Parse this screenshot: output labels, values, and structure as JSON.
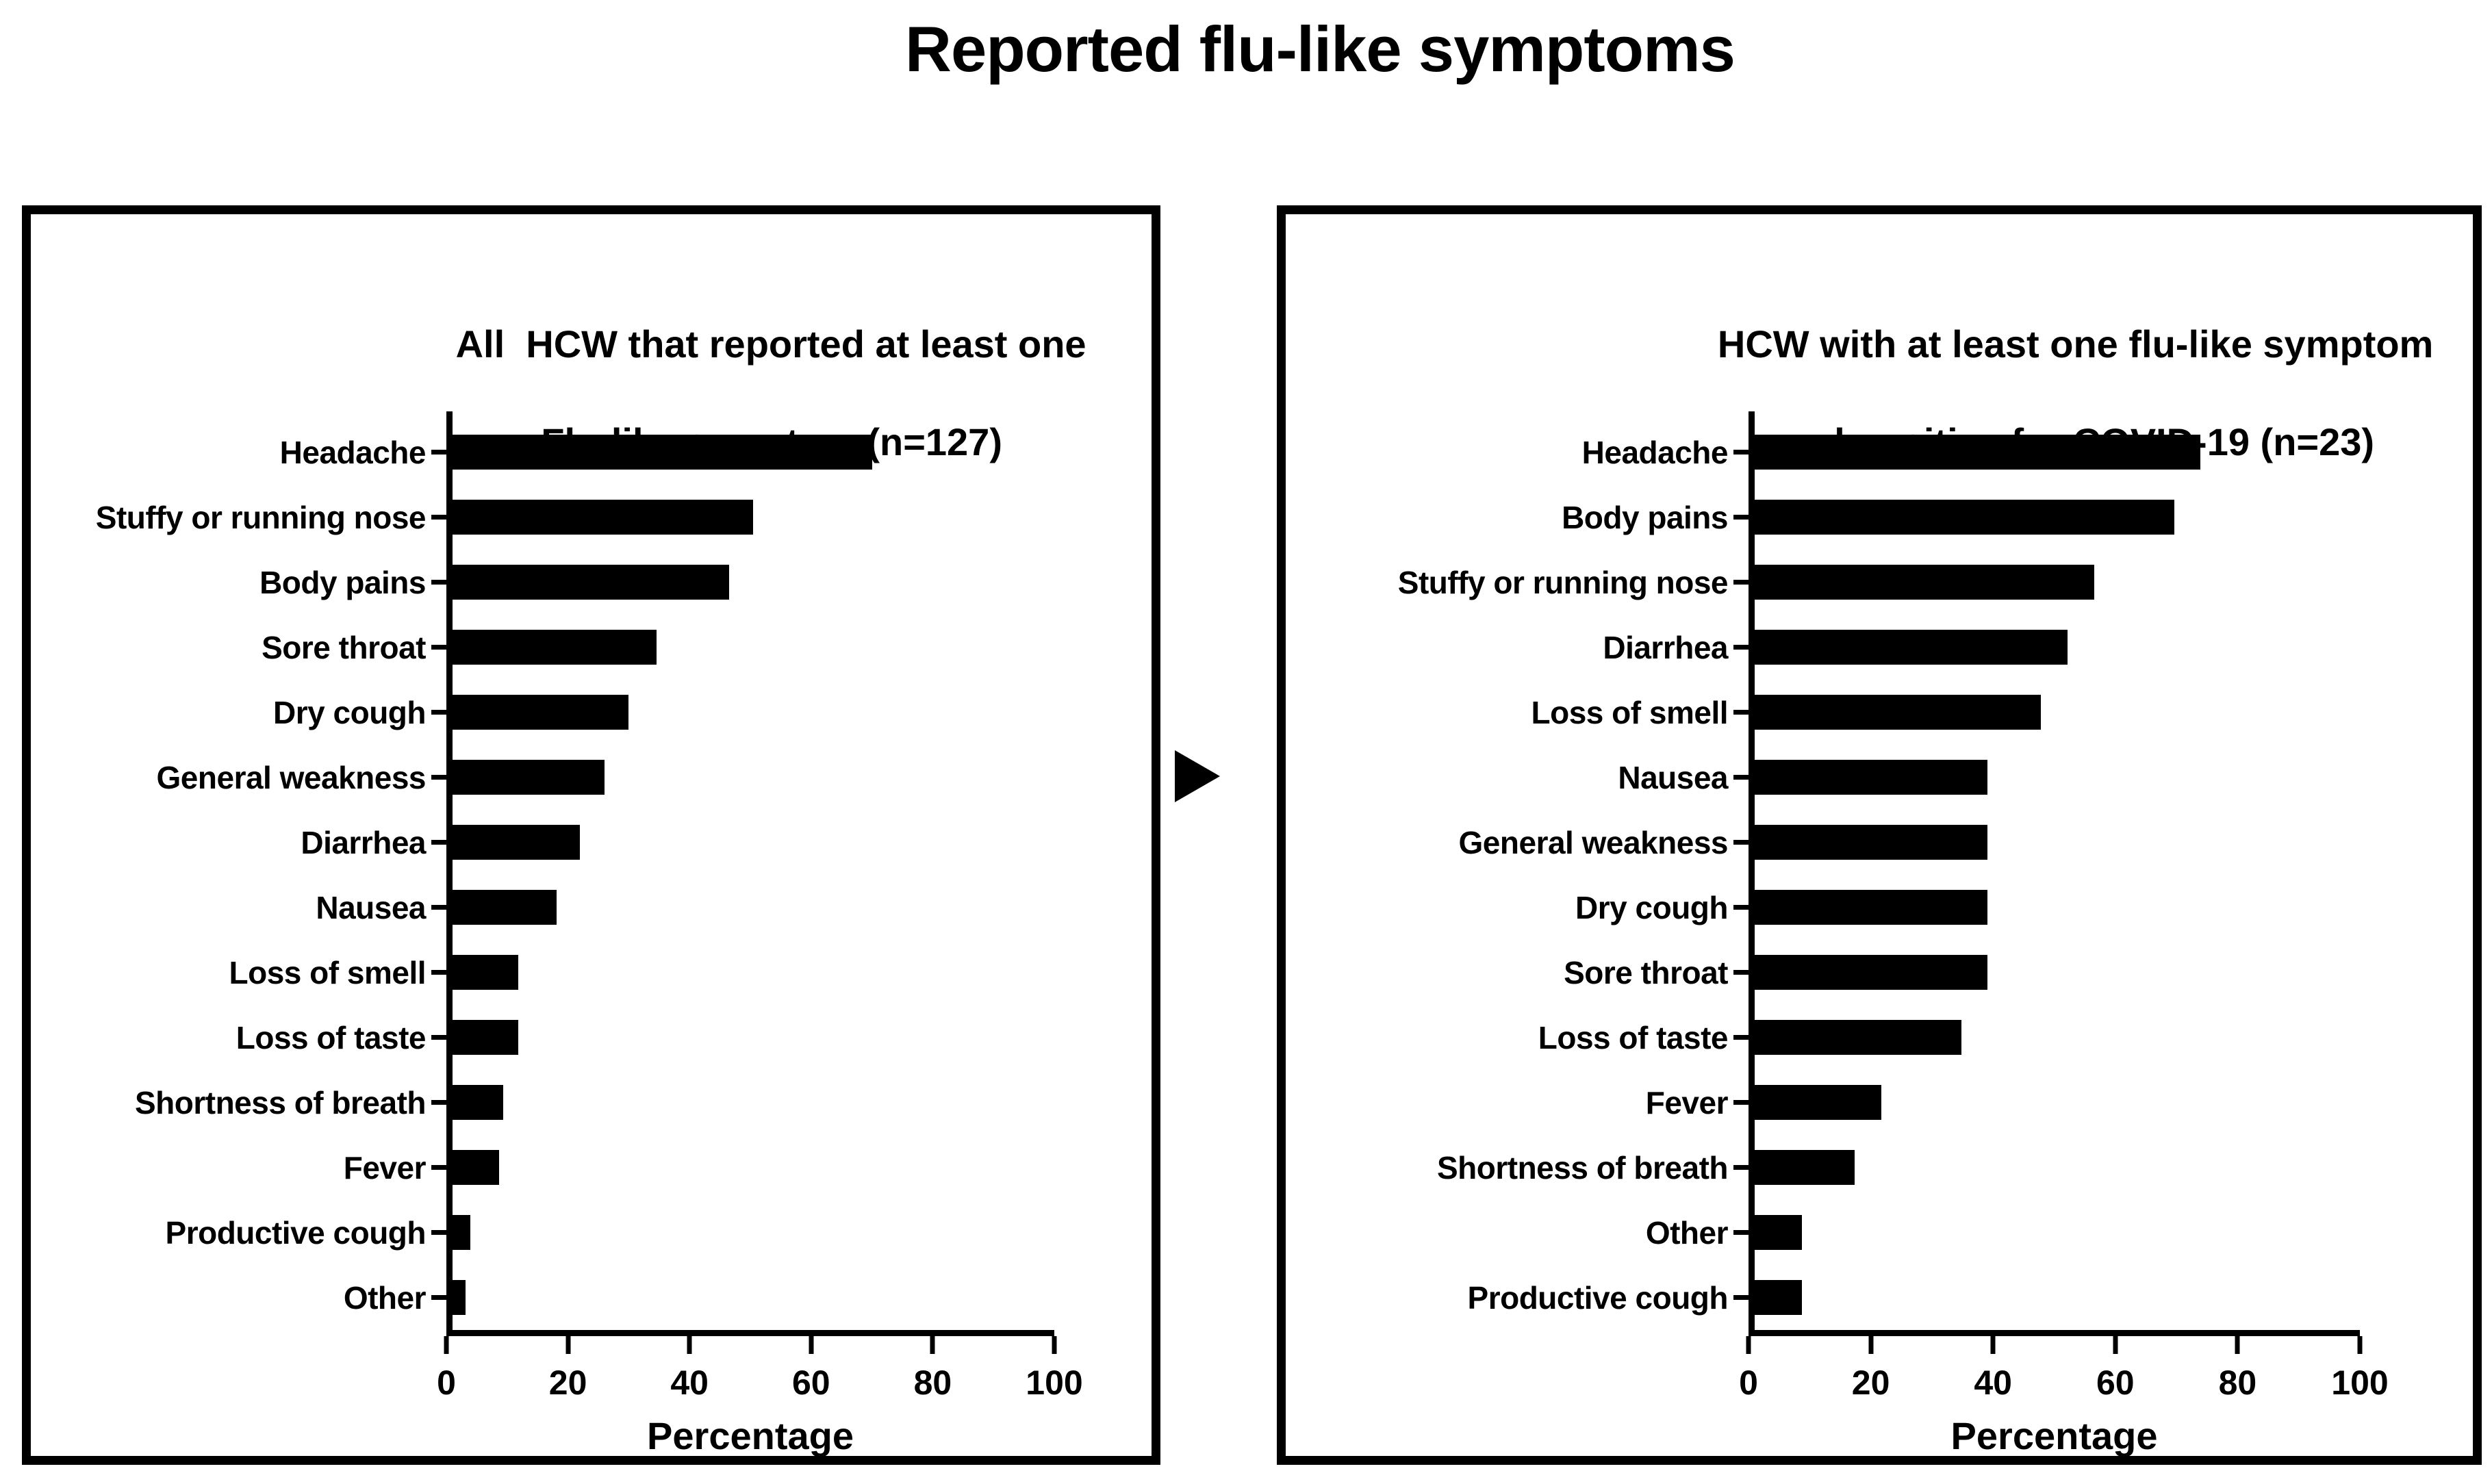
{
  "page_title": "Reported flu-like symptoms",
  "icons": {
    "between_panels": "right-arrow"
  },
  "arrow_glyph": "▶",
  "chart_data": [
    {
      "type": "bar",
      "orientation": "horizontal",
      "title": "All  HCW that reported at least one Flu-like symptom (n=127)",
      "title_lines": [
        "All  HCW that reported at least one",
        "Flu-like symptom (n=127)"
      ],
      "categories": [
        "Headache",
        "Stuffy or running nose",
        "Body pains",
        "Sore throat",
        "Dry cough",
        "General weakness",
        "Diarrhea",
        "Nausea",
        "Loss of smell",
        "Loss of taste",
        "Shortness of breath",
        "Fever",
        "Productive cough",
        "Other"
      ],
      "values": [
        70.1,
        50.4,
        46.5,
        34.6,
        29.9,
        26.0,
        22.0,
        18.1,
        11.8,
        11.8,
        9.4,
        8.7,
        3.9,
        3.1
      ],
      "xlabel": "Percentage",
      "xlim": [
        0,
        100
      ],
      "xticks": [
        0,
        20,
        40,
        60,
        80,
        100
      ],
      "bar_color": "#000000",
      "grid": false,
      "legend": "none"
    },
    {
      "type": "bar",
      "orientation": "horizontal",
      "title": "HCW with at least one flu-like symptom and positive for COVID-19 (n=23)",
      "title_lines": [
        "HCW with at least one flu-like symptom",
        "and positive for COVID-19 (n=23)"
      ],
      "categories": [
        "Headache",
        "Body pains",
        "Stuffy or running nose",
        "Diarrhea",
        "Loss of smell",
        "Nausea",
        "General weakness",
        "Dry cough",
        "Sore throat",
        "Loss of taste",
        "Fever",
        "Shortness of breath",
        "Other",
        "Productive cough"
      ],
      "values": [
        73.9,
        69.6,
        56.5,
        52.2,
        47.8,
        39.1,
        39.1,
        39.1,
        39.1,
        34.8,
        21.7,
        17.4,
        8.7,
        8.7
      ],
      "xlabel": "Percentage",
      "xlim": [
        0,
        100
      ],
      "xticks": [
        0,
        20,
        40,
        60,
        80,
        100
      ],
      "bar_color": "#000000",
      "grid": false,
      "legend": "none"
    }
  ]
}
